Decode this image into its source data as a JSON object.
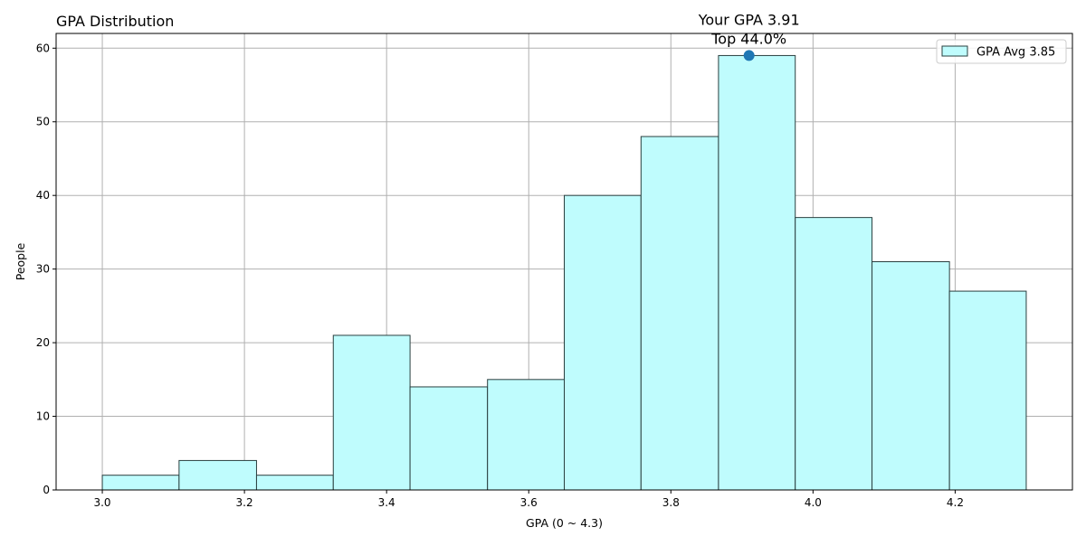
{
  "chart_data": {
    "type": "bar",
    "title": "GPA Distribution",
    "xlabel": "GPA (0 ~ 4.3)",
    "ylabel": "People",
    "xlim": [
      2.935,
      4.365
    ],
    "ylim": [
      0,
      62
    ],
    "bin_edges": [
      3.0,
      3.108,
      3.217,
      3.325,
      3.433,
      3.542,
      3.65,
      3.758,
      3.867,
      3.975,
      4.083,
      4.192,
      4.3
    ],
    "values": [
      2,
      4,
      2,
      21,
      14,
      15,
      40,
      48,
      59,
      37,
      31,
      27
    ],
    "x_ticks": [
      3.0,
      3.2,
      3.4,
      3.6,
      3.8,
      4.0,
      4.2
    ],
    "x_tick_labels": [
      "3.0",
      "3.2",
      "3.4",
      "3.6",
      "3.8",
      "4.0",
      "4.2"
    ],
    "y_ticks": [
      0,
      10,
      20,
      30,
      40,
      50,
      60
    ],
    "y_tick_labels": [
      "0",
      "10",
      "20",
      "30",
      "40",
      "50",
      "60"
    ],
    "grid": true,
    "bar_fill_color": "#bffcfd",
    "bar_edge_color": "#2a3f3f",
    "legend": {
      "position": "top-right",
      "entries": [
        "GPA Avg 3.85"
      ]
    },
    "marker": {
      "x": 3.91,
      "y": 59,
      "color": "#1f77b4"
    },
    "annotation_lines": [
      "Your GPA 3.91",
      "Top 44.0%"
    ]
  }
}
